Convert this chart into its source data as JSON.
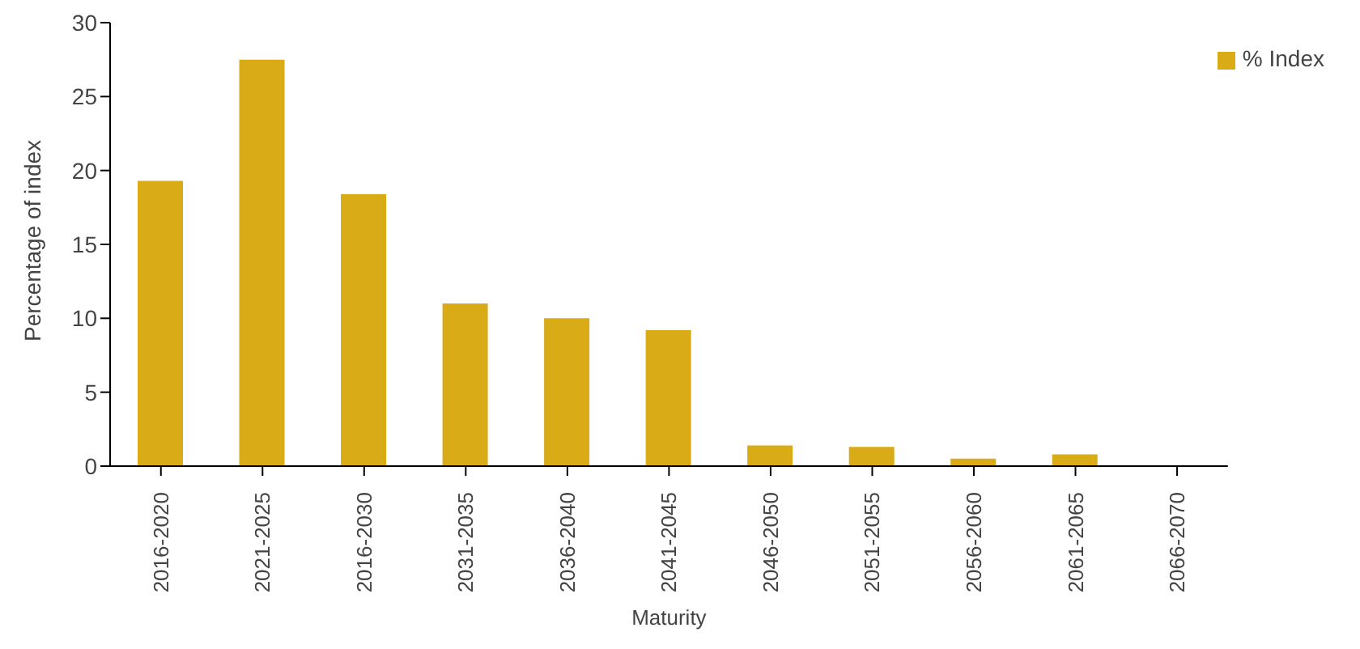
{
  "chart_data": {
    "type": "bar",
    "xlabel": "Maturity",
    "ylabel": "Percentage of index",
    "categories": [
      "2016-2020",
      "2021-2025",
      "2016-2030",
      "2031-2035",
      "2036-2040",
      "2041-2045",
      "2046-2050",
      "2051-2055",
      "2056-2060",
      "2061-2065",
      "2066-2070"
    ],
    "series": [
      {
        "name": "% Index",
        "color": "#d9ab16",
        "values": [
          19.3,
          27.5,
          18.4,
          11.0,
          10.0,
          9.2,
          1.4,
          1.3,
          0.5,
          0.8,
          0
        ]
      }
    ],
    "ylim": [
      0,
      30
    ],
    "yticks": [
      0,
      5,
      10,
      15,
      20,
      25,
      30
    ],
    "grid": false,
    "legend": "top right"
  }
}
